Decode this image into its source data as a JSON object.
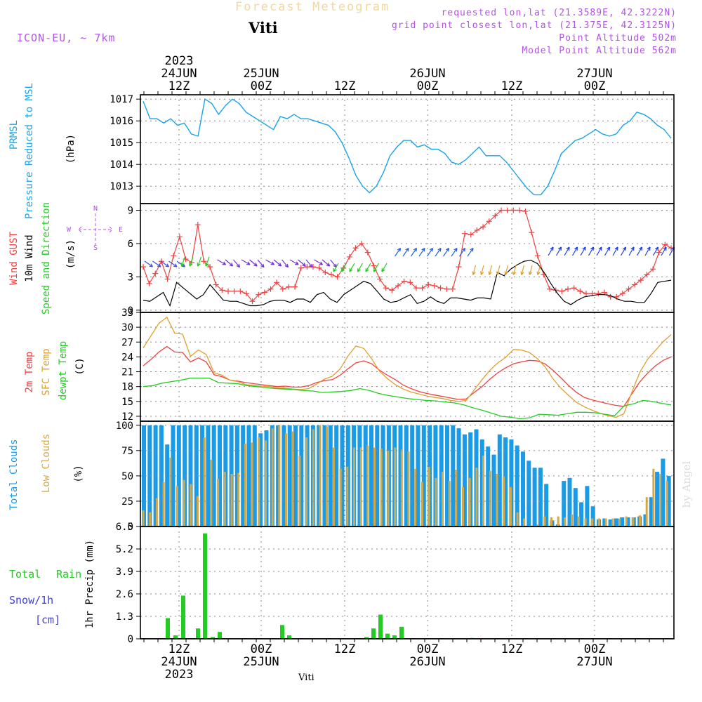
{
  "header": {
    "title": "Forecast Meteogram",
    "station": "Viti",
    "model": "ICON-EU, ~ 7km",
    "requested": "requested lon,lat (21.3589E, 42.3222N)",
    "grid_point": "grid point closest lon,lat (21.375E, 42.3125N)",
    "point_altitude": "Point Altitude 502m",
    "model_altitude": "Model Point Altitude 562m",
    "footer_station": "Viti",
    "watermark": "by Angel"
  },
  "colors": {
    "pressure": "#1aa3e8",
    "gust": "#f04040",
    "wind": "#000000",
    "t2m": "#f04040",
    "sfc": "#e0a030",
    "dewpt": "#22cc22",
    "total_clouds": "#1a9be8",
    "low_clouds": "#d4a848",
    "rain": "#22cc22",
    "snow": "#4040e0",
    "purple": "#b452e8"
  },
  "chart_data": [
    {
      "type": "line",
      "name": "pressure",
      "ylabels": [
        "PRMSL",
        "Pressure Reduced to MSL",
        "(hPa)"
      ],
      "ylim": [
        1012.2,
        1017.2
      ],
      "yticks": [
        1013,
        1014,
        1015,
        1016,
        1017
      ],
      "series": [
        {
          "values": [
            1016.9,
            1016.1,
            1016.1,
            1015.9,
            1016.1,
            1015.8,
            1015.9,
            1015.4,
            1015.3,
            1017.0,
            1016.8,
            1016.3,
            1016.7,
            1017.0,
            1016.8,
            1016.4,
            1016.2,
            1016.0,
            1015.8,
            1015.6,
            1016.2,
            1016.1,
            1016.3,
            1016.1,
            1016.1,
            1016.0,
            1015.9,
            1015.8,
            1015.5,
            1015.0,
            1014.3,
            1013.5,
            1013.0,
            1012.7,
            1013.0,
            1013.6,
            1014.4,
            1014.8,
            1015.1,
            1015.1,
            1014.8,
            1014.9,
            1014.7,
            1014.7,
            1014.5,
            1014.1,
            1014.0,
            1014.2,
            1014.5,
            1014.8,
            1014.4,
            1014.4,
            1014.4,
            1014.1,
            1013.7,
            1013.3,
            1012.9,
            1012.6,
            1012.6,
            1013.0,
            1013.7,
            1014.5,
            1014.8,
            1015.1,
            1015.2,
            1015.4,
            1015.6,
            1015.4,
            1015.3,
            1015.4,
            1015.8,
            1016.0,
            1016.4,
            1016.3,
            1016.1,
            1015.8,
            1015.6,
            1015.2
          ]
        }
      ]
    },
    {
      "type": "line",
      "name": "wind",
      "ylabels": [
        "Wind GUST",
        "10m Wind",
        "Speed and Direction",
        "(m/s)"
      ],
      "compass": {
        "n": "N",
        "s": "S",
        "w": "W",
        "e": "E"
      },
      "ylim": [
        -0.2,
        9.6
      ],
      "yticks": [
        0,
        3,
        6,
        9
      ],
      "gust": [
        3.9,
        2.4,
        3.3,
        4.4,
        2.8,
        4.9,
        6.6,
        4.6,
        4.3,
        7.7,
        4.4,
        3.9,
        2.3,
        1.8,
        1.7,
        1.7,
        1.7,
        1.5,
        0.8,
        1.4,
        1.6,
        1.9,
        2.5,
        1.9,
        2.1,
        2.1,
        3.8,
        3.9,
        3.9,
        3.8,
        3.4,
        3.2,
        3.0,
        3.8,
        4.8,
        5.6,
        6.0,
        5.2,
        4.0,
        2.8,
        2.0,
        1.8,
        2.2,
        2.6,
        2.5,
        2.0,
        2.0,
        2.3,
        2.2,
        2.0,
        1.9,
        1.9,
        3.9,
        6.9,
        6.8,
        7.2,
        7.5,
        8.0,
        8.5,
        9.0,
        9.0,
        9.0,
        9.0,
        8.9,
        7.0,
        4.9,
        3.2,
        1.9,
        1.8,
        1.7,
        1.9,
        2.0,
        1.7,
        1.5,
        1.5,
        1.5,
        1.6,
        1.2,
        1.2,
        1.5,
        1.9,
        2.3,
        2.7,
        3.2,
        3.7,
        5.2,
        5.9,
        5.6
      ],
      "wind10m": [
        0.9,
        0.8,
        1.2,
        1.6,
        0.4,
        2.5,
        2.0,
        1.5,
        1.0,
        1.4,
        2.3,
        1.6,
        0.9,
        0.8,
        0.8,
        0.6,
        0.4,
        0.4,
        0.5,
        0.8,
        0.9,
        0.9,
        0.7,
        1.0,
        1.0,
        0.7,
        1.4,
        1.6,
        1.0,
        0.7,
        1.4,
        1.8,
        2.2,
        2.6,
        2.4,
        1.7,
        1.0,
        0.7,
        0.8,
        1.1,
        1.4,
        0.6,
        0.8,
        1.2,
        0.8,
        0.6,
        1.1,
        1.1,
        1.0,
        0.9,
        1.1,
        1.1,
        1.0,
        3.4,
        3.1,
        3.7,
        4.1,
        4.4,
        4.5,
        4.2,
        3.4,
        2.4,
        1.5,
        0.8,
        0.5,
        0.9,
        1.2,
        1.3,
        1.4,
        1.4,
        1.3,
        1.0,
        0.8,
        0.8,
        0.7,
        0.7,
        1.5,
        2.5,
        2.6,
        2.7
      ]
    },
    {
      "type": "line",
      "name": "temperature",
      "ylabels": [
        "2m Temp",
        "SFC Temp",
        "dewpt Temp",
        "(C)"
      ],
      "ylim": [
        11,
        33
      ],
      "yticks": [
        12,
        15,
        18,
        21,
        24,
        27,
        30,
        33
      ],
      "series": [
        {
          "key": "t2m",
          "values": [
            22.2,
            23.5,
            25.0,
            26.1,
            25.0,
            24.9,
            23.0,
            23.8,
            23.0,
            20.4,
            20.0,
            19.3,
            19.1,
            18.8,
            18.6,
            18.4,
            18.2,
            18.0,
            18.1,
            17.9,
            17.9,
            18.2,
            18.8,
            19.2,
            19.4,
            20.3,
            21.6,
            22.8,
            23.2,
            22.6,
            21.3,
            20.3,
            19.4,
            18.3,
            17.6,
            17.0,
            16.6,
            16.3,
            16.0,
            15.7,
            15.4,
            15.5,
            16.8,
            18.0,
            19.5,
            20.8,
            21.8,
            22.6,
            23.0,
            23.3,
            23.2,
            22.6,
            21.3,
            19.8,
            18.2,
            16.8,
            15.8,
            15.3,
            14.9,
            14.5,
            14.2,
            14.0,
            16.5,
            18.9,
            20.7,
            22.2,
            23.3,
            24.0
          ]
        },
        {
          "key": "sfc",
          "values": [
            25.8,
            28.3,
            30.8,
            32.0,
            28.8,
            28.6,
            24.1,
            25.4,
            24.5,
            20.8,
            20.3,
            19.3,
            19.0,
            18.4,
            18.2,
            18.1,
            18.0,
            17.7,
            17.7,
            17.5,
            17.4,
            17.6,
            18.5,
            19.5,
            20.1,
            21.6,
            24.2,
            26.2,
            25.7,
            23.6,
            21.1,
            19.6,
            18.4,
            17.5,
            16.9,
            16.5,
            16.1,
            15.8,
            15.6,
            15.2,
            15.0,
            15.2,
            17.3,
            19.4,
            21.3,
            22.8,
            23.9,
            25.5,
            25.4,
            24.9,
            23.7,
            22.0,
            19.6,
            17.7,
            16.2,
            14.8,
            13.9,
            13.2,
            12.6,
            12.1,
            11.8,
            12.5,
            16.8,
            20.8,
            23.5,
            25.3,
            27.1,
            28.5
          ]
        },
        {
          "key": "dewpt",
          "values": [
            18.0,
            18.2,
            18.7,
            19.0,
            19.3,
            19.7,
            19.7,
            19.7,
            18.8,
            18.7,
            18.6,
            18.2,
            18.0,
            17.8,
            17.6,
            17.5,
            17.4,
            17.2,
            17.1,
            16.8,
            16.9,
            17.0,
            17.2,
            17.6,
            17.2,
            16.6,
            16.2,
            15.9,
            15.6,
            15.4,
            15.2,
            15.1,
            14.9,
            14.7,
            14.3,
            13.7,
            13.2,
            12.6,
            12.0,
            11.8,
            11.5,
            11.7,
            12.4,
            12.3,
            12.2,
            12.5,
            12.8,
            12.8,
            12.7,
            12.4,
            12.1,
            14.1,
            14.5,
            15.2,
            15.0,
            14.6,
            14.3
          ]
        }
      ]
    },
    {
      "type": "bar",
      "name": "clouds",
      "ylabels": [
        "Total Clouds",
        "Low Clouds",
        "(%)"
      ],
      "ylim": [
        0,
        104
      ],
      "yticks": [
        0,
        25,
        50,
        75,
        100
      ],
      "series": [
        {
          "key": "total",
          "values": [
            100,
            100,
            100,
            100,
            81,
            100,
            100,
            100,
            100,
            100,
            100,
            100,
            100,
            100,
            100,
            100,
            100,
            100,
            100,
            100,
            92,
            95,
            100,
            100,
            100,
            100,
            100,
            100,
            100,
            100,
            100,
            100,
            100,
            100,
            100,
            100,
            100,
            100,
            100,
            100,
            100,
            100,
            100,
            100,
            100,
            100,
            100,
            100,
            100,
            100,
            100,
            100,
            100,
            100,
            97,
            91,
            93,
            96,
            86,
            79,
            71,
            91,
            88,
            86,
            80,
            74,
            65,
            58,
            58,
            42,
            6,
            2,
            45,
            48,
            38,
            24,
            40,
            20,
            7,
            8,
            7,
            8,
            9,
            9,
            9,
            10,
            12,
            29,
            54,
            67,
            50
          ]
        },
        {
          "key": "low",
          "values": [
            16,
            14,
            28,
            44,
            68,
            40,
            46,
            42,
            30,
            88,
            66,
            47,
            54,
            52,
            53,
            82,
            83,
            88,
            85,
            97,
            100,
            92,
            94,
            70,
            88,
            96,
            100,
            99,
            78,
            57,
            59,
            78,
            78,
            80,
            78,
            77,
            75,
            78,
            76,
            74,
            57,
            44,
            59,
            48,
            54,
            45,
            56,
            39,
            48,
            58,
            70,
            55,
            52,
            49,
            39,
            14,
            8,
            1,
            2,
            10,
            9,
            10,
            9,
            12,
            10,
            8,
            8,
            8,
            8,
            8,
            8,
            10,
            9,
            11,
            29,
            57,
            52,
            45
          ]
        }
      ]
    },
    {
      "type": "bar",
      "name": "precip",
      "ylabels": [
        "1hr Precip (mm)"
      ],
      "left_labels": [
        "Total",
        "Rain",
        "Snow/1h",
        "[cm]"
      ],
      "ylim": [
        0,
        6.5
      ],
      "yticks": [
        "0",
        "1.3",
        "2.6",
        "3.9",
        "5.2",
        "6.5"
      ],
      "bars": [
        [
          36,
          1.2
        ],
        [
          47,
          0.2
        ],
        [
          58,
          2.5
        ],
        [
          79,
          0.6
        ],
        [
          89,
          6.1
        ],
        [
          100,
          0.1
        ],
        [
          110,
          0.4
        ],
        [
          199,
          0.8
        ],
        [
          209,
          0.2
        ],
        [
          319,
          0.1
        ],
        [
          329,
          0.6
        ],
        [
          339,
          1.4
        ],
        [
          349,
          0.3
        ],
        [
          359,
          0.2
        ],
        [
          369,
          0.7
        ],
        [
          469,
          0.05
        ]
      ]
    }
  ],
  "xaxis": {
    "top_labels": [
      {
        "day": "24JUN",
        "hour": "12Z",
        "year": "2023"
      },
      {
        "day": "25JUN",
        "hour": "00Z"
      },
      {
        "day": "",
        "hour": "12Z"
      },
      {
        "day": "26JUN",
        "hour": "00Z"
      },
      {
        "day": "",
        "hour": "12Z"
      },
      {
        "day": "27JUN",
        "hour": "00Z"
      }
    ],
    "bottom_labels": [
      {
        "hour": "12Z",
        "day": "24JUN",
        "year": "2023"
      },
      {
        "hour": "00Z",
        "day": "25JUN"
      },
      {
        "hour": "12Z",
        "day": ""
      },
      {
        "hour": "00Z",
        "day": "26JUN"
      },
      {
        "hour": "12Z",
        "day": ""
      },
      {
        "hour": "00Z",
        "day": "27JUN"
      }
    ]
  }
}
